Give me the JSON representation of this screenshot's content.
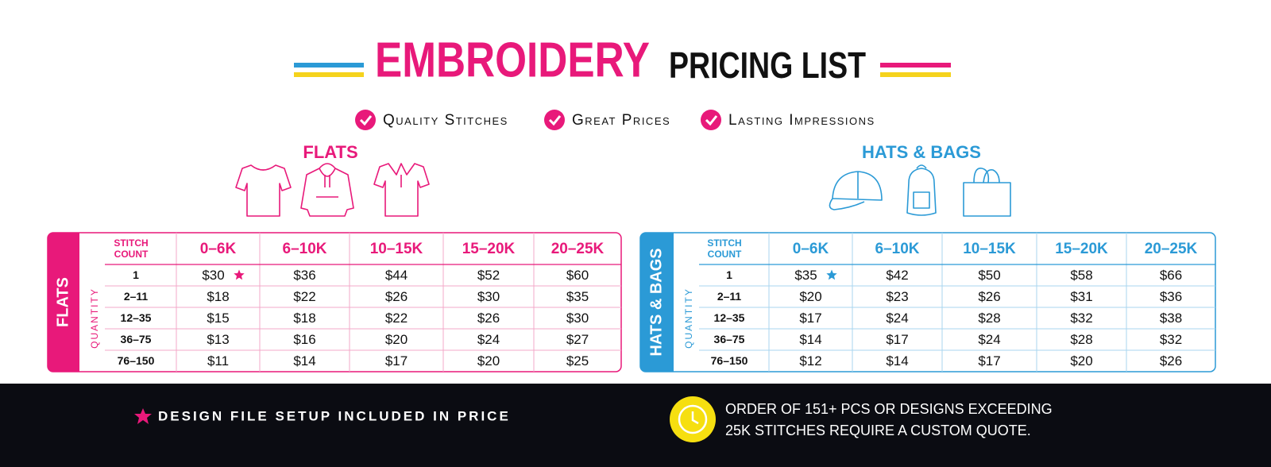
{
  "header": {
    "title_highlight": "EMBROIDERY",
    "title_rest": "PRICING LIST",
    "features": [
      "Quality Stitches",
      "Great Prices",
      "Lasting Impressions"
    ]
  },
  "tables": [
    {
      "heading": "FLATS",
      "side_label": "FLATS",
      "color": "#e8197a",
      "line_color": "#f3a9c9",
      "stitch_label": [
        "STITCH",
        "COUNT"
      ],
      "quantity_label": "QUANTITY",
      "columns": [
        "0–6K",
        "6–10K",
        "10–15K",
        "15–20K",
        "20–25K"
      ],
      "rows": [
        {
          "quantity": "1",
          "prices": [
            "$30",
            "$36",
            "$44",
            "$52",
            "$60"
          ]
        },
        {
          "quantity": "2–11",
          "prices": [
            "$18",
            "$22",
            "$26",
            "$30",
            "$35"
          ]
        },
        {
          "quantity": "12–35",
          "prices": [
            "$15",
            "$18",
            "$22",
            "$26",
            "$30"
          ]
        },
        {
          "quantity": "36–75",
          "prices": [
            "$13",
            "$16",
            "$20",
            "$24",
            "$27"
          ]
        },
        {
          "quantity": "76–150",
          "prices": [
            "$11",
            "$14",
            "$17",
            "$20",
            "$25"
          ]
        }
      ]
    },
    {
      "heading": "HATS & BAGS",
      "side_label": "HATS & BAGS",
      "color": "#2b9ad6",
      "line_color": "#a9d6ef",
      "stitch_label": [
        "STITCH",
        "COUNT"
      ],
      "quantity_label": "QUANTITY",
      "columns": [
        "0–6K",
        "6–10K",
        "10–15K",
        "15–20K",
        "20–25K"
      ],
      "rows": [
        {
          "quantity": "1",
          "prices": [
            "$35",
            "$42",
            "$50",
            "$58",
            "$66"
          ]
        },
        {
          "quantity": "2–11",
          "prices": [
            "$20",
            "$23",
            "$26",
            "$31",
            "$36"
          ]
        },
        {
          "quantity": "12–35",
          "prices": [
            "$17",
            "$24",
            "$28",
            "$32",
            "$38"
          ]
        },
        {
          "quantity": "36–75",
          "prices": [
            "$14",
            "$17",
            "$24",
            "$28",
            "$32"
          ]
        },
        {
          "quantity": "76–150",
          "prices": [
            "$12",
            "$14",
            "$17",
            "$20",
            "$26"
          ]
        }
      ]
    }
  ],
  "footer": {
    "note": "DESIGN FILE SETUP INCLUDED IN PRICE",
    "quote": [
      "ORDER OF 151+ PCS OR DESIGNS EXCEEDING",
      "25K STITCHES REQUIRE A CUSTOM QUOTE."
    ]
  }
}
